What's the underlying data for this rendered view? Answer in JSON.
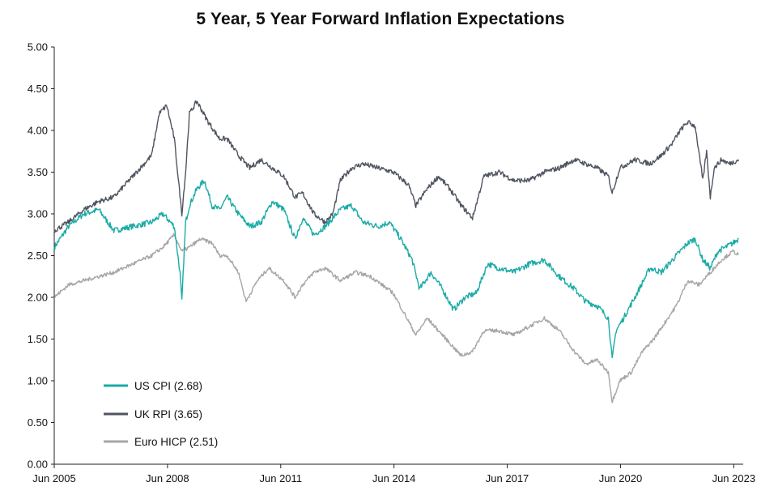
{
  "chart_data": {
    "type": "line",
    "title": "5 Year, 5 Year Forward Inflation Expectations",
    "xlabel": "",
    "ylabel": "",
    "ylim": [
      0,
      5
    ],
    "yticks": [
      "0.00",
      "0.50",
      "1.00",
      "1.50",
      "2.00",
      "2.50",
      "3.00",
      "3.50",
      "4.00",
      "4.50",
      "5.00"
    ],
    "xlim": [
      2005.42,
      2023.67
    ],
    "xticks": [
      {
        "label": "Jun 2005",
        "value": 2005.42
      },
      {
        "label": "Jun 2008",
        "value": 2008.42
      },
      {
        "label": "Jun 2011",
        "value": 2011.42
      },
      {
        "label": "Jun 2014",
        "value": 2014.42
      },
      {
        "label": "Jun 2017",
        "value": 2017.42
      },
      {
        "label": "Jun 2020",
        "value": 2020.42
      },
      {
        "label": "Jun 2023",
        "value": 2023.42
      }
    ],
    "grid": false,
    "legend_position": "bottom-left",
    "series": [
      {
        "name": "US CPI (2.68)",
        "color": "#1aaba6",
        "points": [
          [
            2005.42,
            2.6
          ],
          [
            2005.8,
            2.85
          ],
          [
            2006.2,
            3.0
          ],
          [
            2006.6,
            3.05
          ],
          [
            2007.0,
            2.8
          ],
          [
            2007.5,
            2.85
          ],
          [
            2008.0,
            2.9
          ],
          [
            2008.3,
            3.0
          ],
          [
            2008.6,
            2.85
          ],
          [
            2008.75,
            2.3
          ],
          [
            2008.8,
            1.95
          ],
          [
            2008.9,
            2.9
          ],
          [
            2009.0,
            3.1
          ],
          [
            2009.2,
            3.3
          ],
          [
            2009.4,
            3.4
          ],
          [
            2009.6,
            3.1
          ],
          [
            2009.8,
            3.05
          ],
          [
            2010.0,
            3.2
          ],
          [
            2010.3,
            3.0
          ],
          [
            2010.6,
            2.85
          ],
          [
            2010.9,
            2.9
          ],
          [
            2011.2,
            3.15
          ],
          [
            2011.5,
            3.05
          ],
          [
            2011.8,
            2.7
          ],
          [
            2012.0,
            2.95
          ],
          [
            2012.3,
            2.75
          ],
          [
            2012.6,
            2.85
          ],
          [
            2013.0,
            3.05
          ],
          [
            2013.3,
            3.1
          ],
          [
            2013.6,
            2.9
          ],
          [
            2014.0,
            2.85
          ],
          [
            2014.3,
            2.9
          ],
          [
            2014.6,
            2.7
          ],
          [
            2014.9,
            2.45
          ],
          [
            2015.1,
            2.1
          ],
          [
            2015.4,
            2.3
          ],
          [
            2015.7,
            2.1
          ],
          [
            2016.0,
            1.85
          ],
          [
            2016.3,
            2.0
          ],
          [
            2016.6,
            2.05
          ],
          [
            2016.9,
            2.4
          ],
          [
            2017.2,
            2.35
          ],
          [
            2017.6,
            2.3
          ],
          [
            2018.0,
            2.4
          ],
          [
            2018.4,
            2.45
          ],
          [
            2018.8,
            2.25
          ],
          [
            2019.2,
            2.1
          ],
          [
            2019.5,
            1.95
          ],
          [
            2019.8,
            1.9
          ],
          [
            2020.1,
            1.75
          ],
          [
            2020.2,
            1.25
          ],
          [
            2020.3,
            1.6
          ],
          [
            2020.5,
            1.75
          ],
          [
            2020.8,
            2.0
          ],
          [
            2021.2,
            2.35
          ],
          [
            2021.5,
            2.3
          ],
          [
            2021.8,
            2.45
          ],
          [
            2022.0,
            2.55
          ],
          [
            2022.2,
            2.65
          ],
          [
            2022.4,
            2.7
          ],
          [
            2022.6,
            2.45
          ],
          [
            2022.8,
            2.35
          ],
          [
            2023.0,
            2.55
          ],
          [
            2023.2,
            2.6
          ],
          [
            2023.4,
            2.65
          ],
          [
            2023.55,
            2.7
          ]
        ]
      },
      {
        "name": "UK RPI (3.65)",
        "color": "#4f5560",
        "points": [
          [
            2005.42,
            2.8
          ],
          [
            2005.8,
            2.9
          ],
          [
            2006.2,
            3.05
          ],
          [
            2006.6,
            3.15
          ],
          [
            2007.0,
            3.2
          ],
          [
            2007.5,
            3.45
          ],
          [
            2008.0,
            3.7
          ],
          [
            2008.2,
            4.2
          ],
          [
            2008.4,
            4.3
          ],
          [
            2008.6,
            3.9
          ],
          [
            2008.8,
            3.0
          ],
          [
            2008.9,
            3.5
          ],
          [
            2009.0,
            4.2
          ],
          [
            2009.2,
            4.35
          ],
          [
            2009.5,
            4.1
          ],
          [
            2009.8,
            3.9
          ],
          [
            2010.0,
            3.9
          ],
          [
            2010.3,
            3.7
          ],
          [
            2010.6,
            3.55
          ],
          [
            2010.9,
            3.65
          ],
          [
            2011.2,
            3.55
          ],
          [
            2011.5,
            3.45
          ],
          [
            2011.8,
            3.2
          ],
          [
            2012.0,
            3.25
          ],
          [
            2012.3,
            3.0
          ],
          [
            2012.6,
            2.9
          ],
          [
            2012.8,
            3.0
          ],
          [
            2013.0,
            3.4
          ],
          [
            2013.3,
            3.55
          ],
          [
            2013.6,
            3.6
          ],
          [
            2014.0,
            3.55
          ],
          [
            2014.4,
            3.5
          ],
          [
            2014.8,
            3.35
          ],
          [
            2015.0,
            3.1
          ],
          [
            2015.3,
            3.3
          ],
          [
            2015.6,
            3.45
          ],
          [
            2015.9,
            3.3
          ],
          [
            2016.2,
            3.1
          ],
          [
            2016.5,
            2.95
          ],
          [
            2016.8,
            3.45
          ],
          [
            2017.2,
            3.5
          ],
          [
            2017.6,
            3.4
          ],
          [
            2018.0,
            3.4
          ],
          [
            2018.4,
            3.5
          ],
          [
            2018.8,
            3.55
          ],
          [
            2019.2,
            3.65
          ],
          [
            2019.5,
            3.6
          ],
          [
            2019.8,
            3.55
          ],
          [
            2020.1,
            3.45
          ],
          [
            2020.2,
            3.25
          ],
          [
            2020.4,
            3.55
          ],
          [
            2020.8,
            3.65
          ],
          [
            2021.2,
            3.6
          ],
          [
            2021.5,
            3.7
          ],
          [
            2021.8,
            3.85
          ],
          [
            2022.0,
            4.0
          ],
          [
            2022.2,
            4.1
          ],
          [
            2022.4,
            4.05
          ],
          [
            2022.6,
            3.4
          ],
          [
            2022.7,
            3.75
          ],
          [
            2022.8,
            3.2
          ],
          [
            2022.9,
            3.55
          ],
          [
            2023.1,
            3.65
          ],
          [
            2023.3,
            3.6
          ],
          [
            2023.55,
            3.65
          ]
        ]
      },
      {
        "name": "Euro HICP (2.51)",
        "color": "#a6a6a6",
        "points": [
          [
            2005.42,
            2.0
          ],
          [
            2005.8,
            2.15
          ],
          [
            2006.2,
            2.2
          ],
          [
            2006.6,
            2.25
          ],
          [
            2007.0,
            2.3
          ],
          [
            2007.5,
            2.4
          ],
          [
            2008.0,
            2.5
          ],
          [
            2008.3,
            2.6
          ],
          [
            2008.6,
            2.75
          ],
          [
            2008.8,
            2.55
          ],
          [
            2009.0,
            2.6
          ],
          [
            2009.3,
            2.7
          ],
          [
            2009.6,
            2.65
          ],
          [
            2009.8,
            2.5
          ],
          [
            2010.0,
            2.5
          ],
          [
            2010.3,
            2.3
          ],
          [
            2010.5,
            1.95
          ],
          [
            2010.8,
            2.2
          ],
          [
            2011.1,
            2.35
          ],
          [
            2011.5,
            2.2
          ],
          [
            2011.8,
            2.0
          ],
          [
            2012.0,
            2.15
          ],
          [
            2012.3,
            2.3
          ],
          [
            2012.6,
            2.35
          ],
          [
            2013.0,
            2.2
          ],
          [
            2013.4,
            2.3
          ],
          [
            2013.8,
            2.25
          ],
          [
            2014.1,
            2.15
          ],
          [
            2014.4,
            2.05
          ],
          [
            2014.7,
            1.8
          ],
          [
            2015.0,
            1.55
          ],
          [
            2015.3,
            1.75
          ],
          [
            2015.6,
            1.6
          ],
          [
            2015.9,
            1.45
          ],
          [
            2016.2,
            1.3
          ],
          [
            2016.5,
            1.35
          ],
          [
            2016.8,
            1.6
          ],
          [
            2017.2,
            1.6
          ],
          [
            2017.6,
            1.55
          ],
          [
            2018.0,
            1.65
          ],
          [
            2018.4,
            1.75
          ],
          [
            2018.8,
            1.6
          ],
          [
            2019.2,
            1.35
          ],
          [
            2019.5,
            1.2
          ],
          [
            2019.8,
            1.25
          ],
          [
            2020.1,
            1.1
          ],
          [
            2020.2,
            0.75
          ],
          [
            2020.4,
            1.0
          ],
          [
            2020.7,
            1.1
          ],
          [
            2021.0,
            1.35
          ],
          [
            2021.3,
            1.5
          ],
          [
            2021.6,
            1.7
          ],
          [
            2021.9,
            1.9
          ],
          [
            2022.2,
            2.2
          ],
          [
            2022.5,
            2.15
          ],
          [
            2022.8,
            2.3
          ],
          [
            2023.1,
            2.45
          ],
          [
            2023.4,
            2.55
          ],
          [
            2023.55,
            2.51
          ]
        ]
      }
    ]
  }
}
